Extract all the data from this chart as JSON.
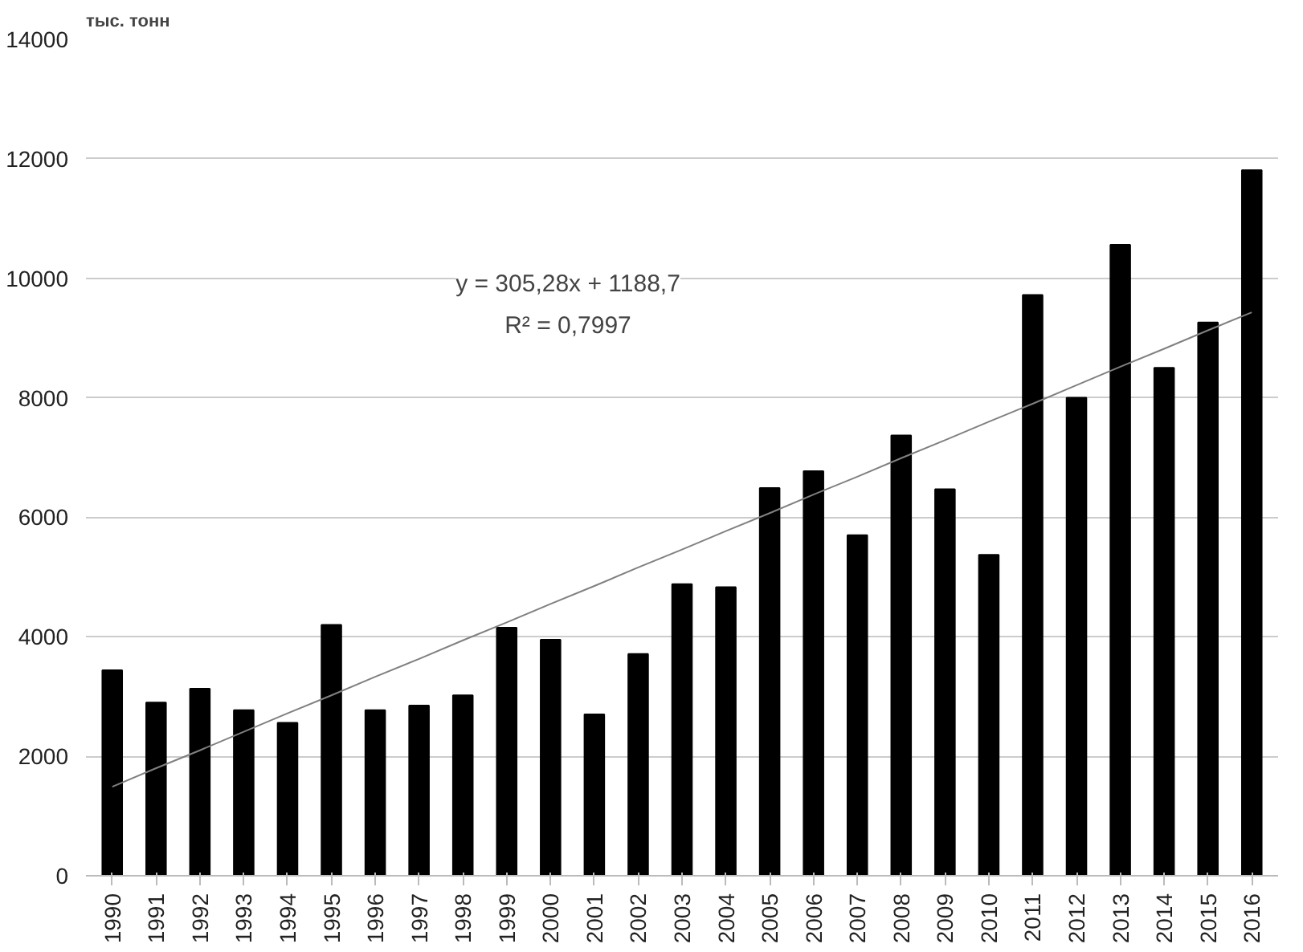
{
  "chart_data": {
    "type": "bar",
    "ylabel": "тыс. тонн",
    "categories": [
      "1990",
      "1991",
      "1992",
      "1993",
      "1994",
      "1995",
      "1996",
      "1997",
      "1998",
      "1999",
      "2000",
      "2001",
      "2002",
      "2003",
      "2004",
      "2005",
      "2006",
      "2007",
      "2008",
      "2009",
      "2010",
      "2011",
      "2012",
      "2013",
      "2014",
      "2015",
      "2016"
    ],
    "series": [
      {
        "color": "#000000",
        "values": [
          3440,
          2900,
          3130,
          2770,
          2560,
          4200,
          2770,
          2850,
          3020,
          4150,
          3950,
          2700,
          3710,
          4880,
          4830,
          6490,
          6770,
          5700,
          7370,
          6470,
          5370,
          9720,
          8000,
          10560,
          8500,
          9260,
          11810
        ]
      },
      {
        "type": "line",
        "color": "#808080",
        "values": [
          1490,
          1800,
          2100,
          2410,
          2720,
          3020,
          3330,
          3630,
          3940,
          4240,
          4550,
          4850,
          5160,
          5460,
          5770,
          6070,
          6380,
          6680,
          6990,
          7290,
          7600,
          7900,
          8210,
          8520,
          8820,
          9130,
          9430
        ]
      }
    ],
    "ylim": [
      0,
      14000
    ],
    "yticks": [
      0,
      2000,
      4000,
      6000,
      8000,
      10000,
      12000,
      14000
    ],
    "grid": "y",
    "annotations": [
      "y = 305,28x + 1188,7\nR² = 0,7997"
    ]
  }
}
